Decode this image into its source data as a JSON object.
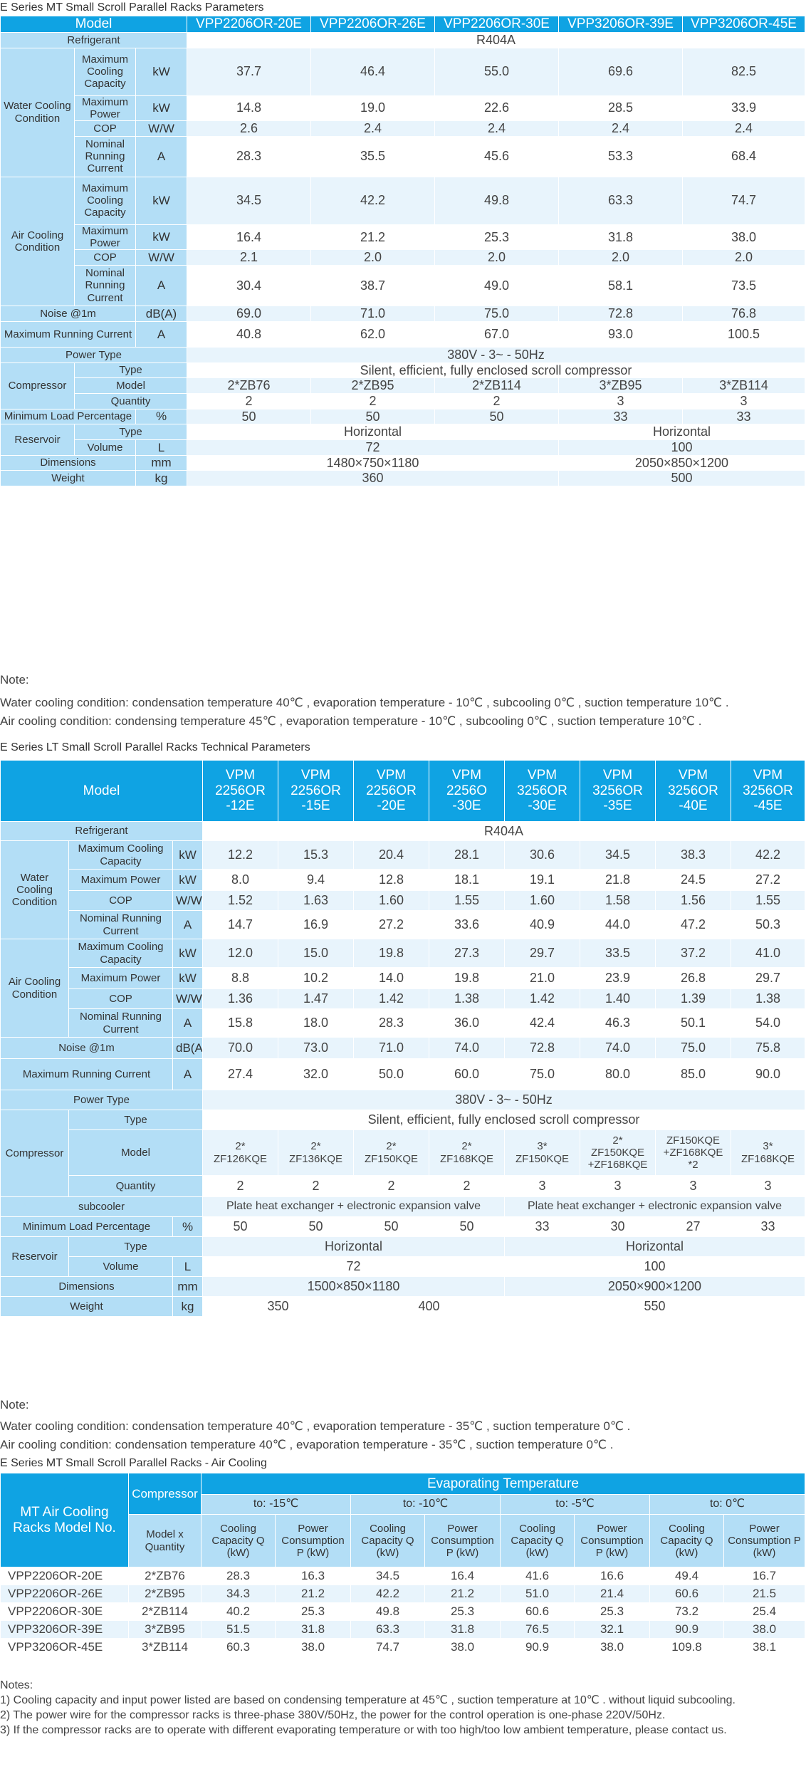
{
  "table1": {
    "title": "E Series MT Small Scroll Parallel Racks Parameters",
    "model_label": "Model",
    "models": [
      "VPP2206OR-20E",
      "VPP2206OR-26E",
      "VPP2206OR-30E",
      "VPP3206OR-39E",
      "VPP3206OR-45E"
    ],
    "refrigerant_label": "Refrigerant",
    "refrigerant": "R404A",
    "water_label": "Water Cooling Condition",
    "air_label": "Air Cooling Condition",
    "water_rows": [
      {
        "label": "Maximum Cooling Capacity",
        "unit": "kW",
        "values": [
          "37.7",
          "46.4",
          "55.0",
          "69.6",
          "82.5"
        ]
      },
      {
        "label": "Maximum Power",
        "unit": "kW",
        "values": [
          "14.8",
          "19.0",
          "22.6",
          "28.5",
          "33.9"
        ]
      },
      {
        "label": "COP",
        "unit": "W/W",
        "values": [
          "2.6",
          "2.4",
          "2.4",
          "2.4",
          "2.4"
        ]
      },
      {
        "label": "Nominal Running Current",
        "unit": "A",
        "values": [
          "28.3",
          "35.5",
          "45.6",
          "53.3",
          "68.4"
        ]
      }
    ],
    "air_rows": [
      {
        "label": "Maximum Cooling Capacity",
        "unit": "kW",
        "values": [
          "34.5",
          "42.2",
          "49.8",
          "63.3",
          "74.7"
        ]
      },
      {
        "label": "Maximum Power",
        "unit": "kW",
        "values": [
          "16.4",
          "21.2",
          "25.3",
          "31.8",
          "38.0"
        ]
      },
      {
        "label": "COP",
        "unit": "W/W",
        "values": [
          "2.1",
          "2.0",
          "2.0",
          "2.0",
          "2.0"
        ]
      },
      {
        "label": "Nominal Running Current",
        "unit": "A",
        "values": [
          "30.4",
          "38.7",
          "49.0",
          "58.1",
          "73.5"
        ]
      }
    ],
    "noise": {
      "label": "Noise @1m",
      "unit": "dB(A)",
      "values": [
        "69.0",
        "71.0",
        "75.0",
        "72.8",
        "76.8"
      ]
    },
    "max_current": {
      "label": "Maximum Running Current",
      "unit": "A",
      "values": [
        "40.8",
        "62.0",
        "67.0",
        "93.0",
        "100.5"
      ]
    },
    "power_type_label": "Power Type",
    "power_type": "380V - 3~ - 50Hz",
    "compressor_label": "Compressor",
    "type_label": "Type",
    "compressor_type": "Silent, efficient, fully enclosed scroll compressor",
    "model_row_label": "Model",
    "compressor_models": [
      "2*ZB76",
      "2*ZB95",
      "2*ZB114",
      "3*ZB95",
      "3*ZB114"
    ],
    "quantity_label": "Quantity",
    "quantities": [
      "2",
      "2",
      "2",
      "3",
      "3"
    ],
    "min_load": {
      "label": "Minimum Load Percentage",
      "unit": "%",
      "values": [
        "50",
        "50",
        "50",
        "33",
        "33"
      ]
    },
    "reservoir_label": "Reservoir",
    "res_type_label": "Type",
    "res_type": [
      "Horizontal",
      "Horizontal"
    ],
    "volume_label": "Volume",
    "volume_unit": "L",
    "volume": [
      "72",
      "100"
    ],
    "dimensions_label": "Dimensions",
    "dimensions_unit": "mm",
    "dimensions": [
      "1480×750×1180",
      "2050×850×1200"
    ],
    "weight_label": "Weight",
    "weight_unit": "kg",
    "weight": [
      "360",
      "500"
    ],
    "note_title": "Note:",
    "notes": [
      "Water cooling condition: condensation temperature 40℃ , evaporation temperature - 10℃ , subcooling 0℃ , suction temperature 10℃ .",
      "Air cooling condition: condensing temperature 45℃ , evaporation temperature - 10℃ , subcooling 0℃ , suction temperature 10℃ ."
    ]
  },
  "table2": {
    "title": "E Series LT Small Scroll Parallel Racks Technical Parameters",
    "model_label": "Model",
    "models": [
      [
        "VPM",
        "2256OR",
        "-12E"
      ],
      [
        "VPM",
        "2256OR",
        "-15E"
      ],
      [
        "VPM",
        "2256OR",
        "-20E"
      ],
      [
        "VPM",
        "2256O",
        "-30E"
      ],
      [
        "VPM",
        "3256OR",
        "-30E"
      ],
      [
        "VPM",
        "3256OR",
        "-35E"
      ],
      [
        "VPM",
        "3256OR",
        "-40E"
      ],
      [
        "VPM",
        "3256OR",
        "-45E"
      ]
    ],
    "refrigerant_label": "Refrigerant",
    "refrigerant": "R404A",
    "water_label": "Water Cooling Condition",
    "air_label": "Air Cooling Condition",
    "water_rows": [
      {
        "label": "Maximum Cooling Capacity",
        "unit": "kW",
        "values": [
          "12.2",
          "15.3",
          "20.4",
          "28.1",
          "30.6",
          "34.5",
          "38.3",
          "42.2"
        ]
      },
      {
        "label": "Maximum Power",
        "unit": "kW",
        "values": [
          "8.0",
          "9.4",
          "12.8",
          "18.1",
          "19.1",
          "21.8",
          "24.5",
          "27.2"
        ]
      },
      {
        "label": "COP",
        "unit": "W/W",
        "values": [
          "1.52",
          "1.63",
          "1.60",
          "1.55",
          "1.60",
          "1.58",
          "1.56",
          "1.55"
        ]
      },
      {
        "label": "Nominal Running Current",
        "unit": "A",
        "values": [
          "14.7",
          "16.9",
          "27.2",
          "33.6",
          "40.9",
          "44.0",
          "47.2",
          "50.3"
        ]
      }
    ],
    "air_rows": [
      {
        "label": "Maximum Cooling Capacity",
        "unit": "kW",
        "values": [
          "12.0",
          "15.0",
          "19.8",
          "27.3",
          "29.7",
          "33.5",
          "37.2",
          "41.0"
        ]
      },
      {
        "label": "Maximum Power",
        "unit": "kW",
        "values": [
          "8.8",
          "10.2",
          "14.0",
          "19.8",
          "21.0",
          "23.9",
          "26.8",
          "29.7"
        ]
      },
      {
        "label": "COP",
        "unit": "W/W",
        "values": [
          "1.36",
          "1.47",
          "1.42",
          "1.38",
          "1.42",
          "1.40",
          "1.39",
          "1.38"
        ]
      },
      {
        "label": "Nominal Running Current",
        "unit": "A",
        "values": [
          "15.8",
          "18.0",
          "28.3",
          "36.0",
          "42.4",
          "46.3",
          "50.1",
          "54.0"
        ]
      }
    ],
    "noise": {
      "label": "Noise @1m",
      "unit": "dB(A)",
      "values": [
        "70.0",
        "73.0",
        "71.0",
        "74.0",
        "72.8",
        "74.0",
        "75.0",
        "75.8"
      ]
    },
    "max_current": {
      "label": "Maximum Running Current",
      "unit": "A",
      "values": [
        "27.4",
        "32.0",
        "50.0",
        "60.0",
        "75.0",
        "80.0",
        "85.0",
        "90.0"
      ]
    },
    "power_type_label": "Power Type",
    "power_type": "380V - 3~ - 50Hz",
    "compressor_label": "Compressor",
    "type_label": "Type",
    "compressor_type": "Silent, efficient, fully enclosed scroll compressor",
    "model_row_label": "Model",
    "compressor_models": [
      [
        "2*",
        "ZF126KQE"
      ],
      [
        "2*",
        "ZF136KQE"
      ],
      [
        "2*",
        "ZF150KQE"
      ],
      [
        "2*",
        "ZF168KQE"
      ],
      [
        "3*",
        "ZF150KQE"
      ],
      [
        "2*",
        "ZF150KQE",
        "+ZF168KQE"
      ],
      [
        "ZF150KQE",
        "+ZF168KQE",
        "*2"
      ],
      [
        "3*",
        "ZF168KQE"
      ]
    ],
    "quantity_label": "Quantity",
    "quantities": [
      "2",
      "2",
      "2",
      "2",
      "3",
      "3",
      "3",
      "3"
    ],
    "subcooler_label": "subcooler",
    "subcooler": [
      "Plate heat exchanger + electronic expansion valve",
      "Plate heat exchanger + electronic expansion valve"
    ],
    "min_load": {
      "label": "Minimum Load Percentage",
      "unit": "%",
      "values": [
        "50",
        "50",
        "50",
        "50",
        "33",
        "30",
        "27",
        "33"
      ]
    },
    "reservoir_label": "Reservoir",
    "res_type_label": "Type",
    "res_type": [
      "Horizontal",
      "Horizontal"
    ],
    "volume_label": "Volume",
    "volume_unit": "L",
    "volume": [
      "72",
      "100"
    ],
    "dimensions_label": "Dimensions",
    "dimensions_unit": "mm",
    "dimensions": [
      "1500×850×1180",
      "2050×900×1200"
    ],
    "weight_label": "Weight",
    "weight_unit": "kg",
    "weight": [
      "350",
      "400",
      "550"
    ],
    "note_title": "Note:",
    "notes": [
      "Water cooling condition: condensation temperature 40℃ , evaporation temperature - 35℃ , suction temperature 0℃ .",
      "Air cooling condition: condensation temperature 40℃ , evaporation temperature - 35℃ , suction temperature 0℃ ."
    ]
  },
  "table3": {
    "title": "E Series MT Small Scroll Parallel Racks - Air Cooling",
    "model_no_label": "MT Air Cooling Racks Model No.",
    "compressor_label": "Compressor",
    "compressor_sub": "Model x Quantity",
    "evap_label": "Evaporating Temperature",
    "temps": [
      "to: -15℃",
      "to: -10℃",
      "to: -5℃",
      "to: 0℃"
    ],
    "cap_label": "Cooling Capacity Q (kW)",
    "pow_label": "Power Consumption P (kW)",
    "rows": [
      {
        "model": "VPP2206OR-20E",
        "comp": "2*ZB76",
        "values": [
          "28.3",
          "16.3",
          "34.5",
          "16.4",
          "41.6",
          "16.6",
          "49.4",
          "16.7"
        ]
      },
      {
        "model": "VPP2206OR-26E",
        "comp": "2*ZB95",
        "values": [
          "34.3",
          "21.2",
          "42.2",
          "21.2",
          "51.0",
          "21.4",
          "60.6",
          "21.5"
        ]
      },
      {
        "model": "VPP2206OR-30E",
        "comp": "2*ZB114",
        "values": [
          "40.2",
          "25.3",
          "49.8",
          "25.3",
          "60.6",
          "25.3",
          "73.2",
          "25.4"
        ]
      },
      {
        "model": "VPP3206OR-39E",
        "comp": "3*ZB95",
        "values": [
          "51.5",
          "31.8",
          "63.3",
          "31.8",
          "76.5",
          "32.1",
          "90.9",
          "38.0"
        ]
      },
      {
        "model": "VPP3206OR-45E",
        "comp": "3*ZB114",
        "values": [
          "60.3",
          "38.0",
          "74.7",
          "38.0",
          "90.9",
          "38.0",
          "109.8",
          "38.1"
        ]
      }
    ],
    "notes_title": "Notes:",
    "notes": [
      "1) Cooling capacity and input power listed are based on condensing temperature at 45℃ , suction temperature at 10℃ . without liquid subcooling.",
      "2) The power wire for the compressor racks is three-phase 380V/50Hz, the power for the control operation is one-phase 220V/50Hz.",
      "3) If the compressor racks are to operate with different evaporating temperature or with too high/too low ambient temperature, please contact us."
    ]
  }
}
